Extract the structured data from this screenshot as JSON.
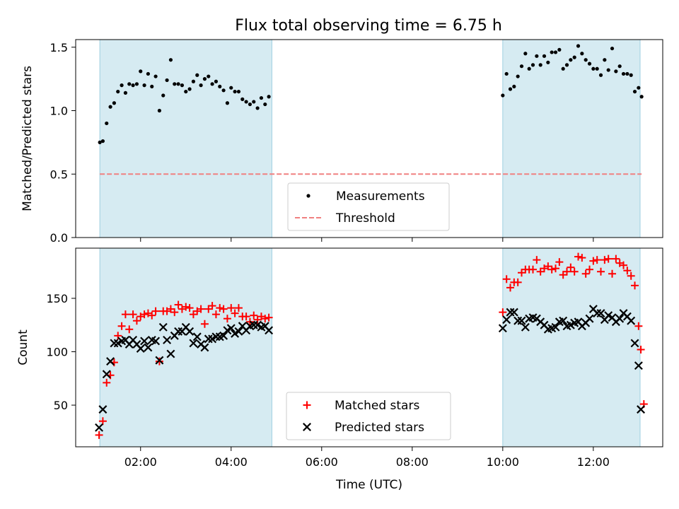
{
  "figure_title": "Flux total observing time = 6.75 h",
  "chart_data": [
    {
      "type": "scatter",
      "panel": "top",
      "ylabel": "Matched/Predicted stars",
      "xlabel": "",
      "xlim": [
        "00:34",
        "13:32"
      ],
      "ylim": [
        0,
        1.56
      ],
      "yticks": [
        "0.0",
        "0.5",
        "1.0",
        "1.5"
      ],
      "shaded_intervals": [
        [
          "01:06",
          "04:54"
        ],
        [
          "10:00",
          "13:02"
        ]
      ],
      "legend_position": "lower-center",
      "series": [
        {
          "name": "Measurements",
          "marker": "dot",
          "color": "#000000",
          "points": [
            [
              "01:06",
              0.75
            ],
            [
              "01:10",
              0.76
            ],
            [
              "01:15",
              0.9
            ],
            [
              "01:20",
              1.03
            ],
            [
              "01:25",
              1.06
            ],
            [
              "01:30",
              1.15
            ],
            [
              "01:35",
              1.2
            ],
            [
              "01:40",
              1.14
            ],
            [
              "01:45",
              1.21
            ],
            [
              "01:50",
              1.2
            ],
            [
              "01:55",
              1.21
            ],
            [
              "02:00",
              1.31
            ],
            [
              "02:05",
              1.2
            ],
            [
              "02:10",
              1.29
            ],
            [
              "02:15",
              1.19
            ],
            [
              "02:20",
              1.27
            ],
            [
              "02:25",
              1.0
            ],
            [
              "02:30",
              1.12
            ],
            [
              "02:35",
              1.24
            ],
            [
              "02:40",
              1.4
            ],
            [
              "02:45",
              1.21
            ],
            [
              "02:50",
              1.21
            ],
            [
              "02:55",
              1.2
            ],
            [
              "03:00",
              1.15
            ],
            [
              "03:05",
              1.17
            ],
            [
              "03:10",
              1.23
            ],
            [
              "03:15",
              1.28
            ],
            [
              "03:20",
              1.2
            ],
            [
              "03:25",
              1.25
            ],
            [
              "03:30",
              1.27
            ],
            [
              "03:35",
              1.21
            ],
            [
              "03:40",
              1.23
            ],
            [
              "03:45",
              1.19
            ],
            [
              "03:50",
              1.16
            ],
            [
              "03:55",
              1.06
            ],
            [
              "04:00",
              1.18
            ],
            [
              "04:05",
              1.15
            ],
            [
              "04:10",
              1.15
            ],
            [
              "04:15",
              1.09
            ],
            [
              "04:20",
              1.07
            ],
            [
              "04:25",
              1.05
            ],
            [
              "04:30",
              1.07
            ],
            [
              "04:35",
              1.02
            ],
            [
              "04:40",
              1.1
            ],
            [
              "04:45",
              1.05
            ],
            [
              "04:50",
              1.11
            ],
            [
              "10:00",
              1.12
            ],
            [
              "10:05",
              1.29
            ],
            [
              "10:10",
              1.17
            ],
            [
              "10:15",
              1.19
            ],
            [
              "10:20",
              1.27
            ],
            [
              "10:25",
              1.35
            ],
            [
              "10:30",
              1.45
            ],
            [
              "10:35",
              1.33
            ],
            [
              "10:40",
              1.36
            ],
            [
              "10:45",
              1.43
            ],
            [
              "10:50",
              1.36
            ],
            [
              "10:55",
              1.43
            ],
            [
              "11:00",
              1.38
            ],
            [
              "11:05",
              1.46
            ],
            [
              "11:10",
              1.46
            ],
            [
              "11:15",
              1.48
            ],
            [
              "11:20",
              1.33
            ],
            [
              "11:25",
              1.36
            ],
            [
              "11:30",
              1.4
            ],
            [
              "11:35",
              1.42
            ],
            [
              "11:40",
              1.51
            ],
            [
              "11:45",
              1.45
            ],
            [
              "11:50",
              1.4
            ],
            [
              "11:55",
              1.37
            ],
            [
              "12:00",
              1.33
            ],
            [
              "12:05",
              1.33
            ],
            [
              "12:10",
              1.28
            ],
            [
              "12:15",
              1.4
            ],
            [
              "12:20",
              1.32
            ],
            [
              "12:25",
              1.49
            ],
            [
              "12:30",
              1.31
            ],
            [
              "12:35",
              1.35
            ],
            [
              "12:40",
              1.29
            ],
            [
              "12:45",
              1.29
            ],
            [
              "12:50",
              1.28
            ],
            [
              "12:55",
              1.15
            ],
            [
              "13:00",
              1.18
            ],
            [
              "13:04",
              1.11
            ]
          ]
        },
        {
          "name": "Threshold",
          "marker": "dashed-line",
          "color": "#f08080",
          "points": [
            [
              "01:06",
              0.5
            ],
            [
              "13:04",
              0.5
            ]
          ]
        }
      ]
    },
    {
      "type": "scatter",
      "panel": "bottom",
      "ylabel": "Count",
      "xlabel": "Time (UTC)",
      "xlim": [
        "00:34",
        "13:32"
      ],
      "ylim": [
        11,
        197
      ],
      "yticks": [
        "50",
        "100",
        "150"
      ],
      "xticks": [
        "02:00",
        "04:00",
        "06:00",
        "08:00",
        "10:00",
        "12:00"
      ],
      "shaded_intervals": [
        [
          "01:06",
          "04:54"
        ],
        [
          "10:00",
          "13:02"
        ]
      ],
      "legend_position": "lower-center",
      "series": [
        {
          "name": "Matched stars",
          "marker": "plus",
          "color": "#ff0000",
          "points": [
            [
              "01:05",
              22
            ],
            [
              "01:10",
              35
            ],
            [
              "01:15",
              71
            ],
            [
              "01:20",
              78
            ],
            [
              "01:25",
              90
            ],
            [
              "01:30",
              115
            ],
            [
              "01:35",
              124
            ],
            [
              "01:40",
              135
            ],
            [
              "01:45",
              121
            ],
            [
              "01:50",
              135
            ],
            [
              "01:55",
              129
            ],
            [
              "02:00",
              133
            ],
            [
              "02:05",
              135
            ],
            [
              "02:10",
              136
            ],
            [
              "02:15",
              134
            ],
            [
              "02:20",
              138
            ],
            [
              "02:25",
              91
            ],
            [
              "02:30",
              138
            ],
            [
              "02:35",
              138
            ],
            [
              "02:40",
              140
            ],
            [
              "02:45",
              137
            ],
            [
              "02:50",
              144
            ],
            [
              "02:55",
              140
            ],
            [
              "03:00",
              142
            ],
            [
              "03:05",
              141
            ],
            [
              "03:10",
              135
            ],
            [
              "03:15",
              138
            ],
            [
              "03:20",
              140
            ],
            [
              "03:25",
              126
            ],
            [
              "03:30",
              140
            ],
            [
              "03:35",
              143
            ],
            [
              "03:40",
              135
            ],
            [
              "03:45",
              141
            ],
            [
              "03:50",
              140
            ],
            [
              "03:55",
              131
            ],
            [
              "04:00",
              141
            ],
            [
              "04:05",
              136
            ],
            [
              "04:10",
              141
            ],
            [
              "04:15",
              133
            ],
            [
              "04:20",
              133
            ],
            [
              "04:25",
              128
            ],
            [
              "04:30",
              134
            ],
            [
              "04:35",
              130
            ],
            [
              "04:40",
              133
            ],
            [
              "04:45",
              131
            ],
            [
              "04:50",
              132
            ],
            [
              "10:00",
              137
            ],
            [
              "10:05",
              168
            ],
            [
              "10:10",
              160
            ],
            [
              "10:15",
              165
            ],
            [
              "10:20",
              165
            ],
            [
              "10:25",
              174
            ],
            [
              "10:30",
              177
            ],
            [
              "10:35",
              177
            ],
            [
              "10:40",
              177
            ],
            [
              "10:45",
              186
            ],
            [
              "10:50",
              175
            ],
            [
              "10:55",
              178
            ],
            [
              "11:00",
              180
            ],
            [
              "11:05",
              177
            ],
            [
              "11:10",
              178
            ],
            [
              "11:15",
              184
            ],
            [
              "11:20",
              172
            ],
            [
              "11:25",
              175
            ],
            [
              "11:30",
              179
            ],
            [
              "11:35",
              175
            ],
            [
              "11:40",
              189
            ],
            [
              "11:45",
              188
            ],
            [
              "11:50",
              173
            ],
            [
              "11:55",
              177
            ],
            [
              "12:00",
              185
            ],
            [
              "12:05",
              186
            ],
            [
              "12:10",
              175
            ],
            [
              "12:15",
              186
            ],
            [
              "12:20",
              187
            ],
            [
              "12:25",
              173
            ],
            [
              "12:30",
              187
            ],
            [
              "12:35",
              183
            ],
            [
              "12:40",
              181
            ],
            [
              "12:45",
              176
            ],
            [
              "12:50",
              171
            ],
            [
              "12:55",
              162
            ],
            [
              "13:00",
              124
            ],
            [
              "13:03",
              102
            ],
            [
              "13:07",
              51
            ]
          ]
        },
        {
          "name": "Predicted stars",
          "marker": "x",
          "color": "#000000",
          "points": [
            [
              "01:05",
              29
            ],
            [
              "01:10",
              46
            ],
            [
              "01:15",
              79
            ],
            [
              "01:20",
              91
            ],
            [
              "01:25",
              108
            ],
            [
              "01:30",
              108
            ],
            [
              "01:35",
              110
            ],
            [
              "01:40",
              111
            ],
            [
              "01:45",
              107
            ],
            [
              "01:50",
              111
            ],
            [
              "01:55",
              107
            ],
            [
              "02:00",
              103
            ],
            [
              "02:05",
              110
            ],
            [
              "02:10",
              104
            ],
            [
              "02:15",
              111
            ],
            [
              "02:20",
              110
            ],
            [
              "02:25",
              92
            ],
            [
              "02:30",
              123
            ],
            [
              "02:35",
              111
            ],
            [
              "02:40",
              98
            ],
            [
              "02:45",
              115
            ],
            [
              "02:50",
              119
            ],
            [
              "02:55",
              119
            ],
            [
              "03:00",
              123
            ],
            [
              "03:05",
              119
            ],
            [
              "03:10",
              108
            ],
            [
              "03:15",
              114
            ],
            [
              "03:20",
              107
            ],
            [
              "03:25",
              104
            ],
            [
              "03:30",
              112
            ],
            [
              "03:35",
              112
            ],
            [
              "03:40",
              114
            ],
            [
              "03:45",
              114
            ],
            [
              "03:50",
              115
            ],
            [
              "03:55",
              120
            ],
            [
              "04:00",
              122
            ],
            [
              "04:05",
              117
            ],
            [
              "04:10",
              119
            ],
            [
              "04:15",
              124
            ],
            [
              "04:20",
              120
            ],
            [
              "04:25",
              124
            ],
            [
              "04:30",
              125
            ],
            [
              "04:35",
              125
            ],
            [
              "04:40",
              123
            ],
            [
              "04:45",
              124
            ],
            [
              "04:50",
              120
            ],
            [
              "10:00",
              122
            ],
            [
              "10:05",
              130
            ],
            [
              "10:10",
              137
            ],
            [
              "10:15",
              137
            ],
            [
              "10:20",
              129
            ],
            [
              "10:25",
              129
            ],
            [
              "10:30",
              123
            ],
            [
              "10:35",
              131
            ],
            [
              "10:40",
              132
            ],
            [
              "10:45",
              131
            ],
            [
              "10:50",
              128
            ],
            [
              "10:55",
              125
            ],
            [
              "11:00",
              121
            ],
            [
              "11:05",
              122
            ],
            [
              "11:10",
              123
            ],
            [
              "11:15",
              128
            ],
            [
              "11:20",
              129
            ],
            [
              "11:25",
              124
            ],
            [
              "11:30",
              125
            ],
            [
              "11:35",
              127
            ],
            [
              "11:40",
              128
            ],
            [
              "11:45",
              124
            ],
            [
              "11:50",
              127
            ],
            [
              "11:55",
              131
            ],
            [
              "12:00",
              140
            ],
            [
              "12:05",
              136
            ],
            [
              "12:10",
              136
            ],
            [
              "12:15",
              130
            ],
            [
              "12:20",
              134
            ],
            [
              "12:25",
              132
            ],
            [
              "12:30",
              128
            ],
            [
              "12:35",
              131
            ],
            [
              "12:40",
              136
            ],
            [
              "12:45",
              133
            ],
            [
              "12:50",
              129
            ],
            [
              "12:55",
              108
            ],
            [
              "13:00",
              87
            ],
            [
              "13:03",
              46
            ]
          ]
        }
      ]
    }
  ]
}
